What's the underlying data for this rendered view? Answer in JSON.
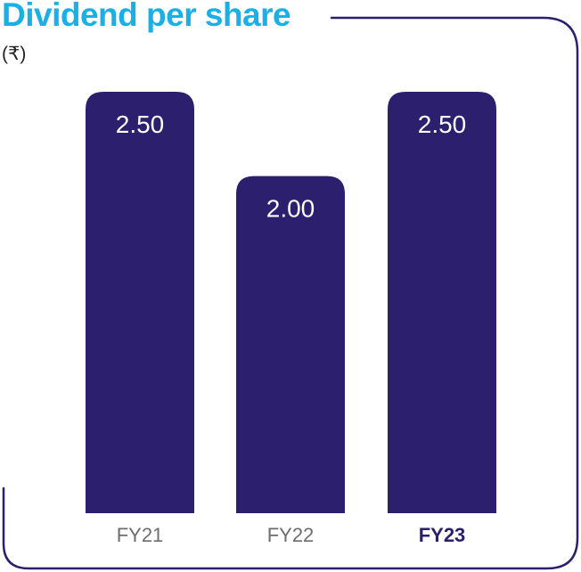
{
  "chart_data": {
    "type": "bar",
    "title": "Dividend per share",
    "unit": "(₹)",
    "categories": [
      "FY21",
      "FY22",
      "FY23"
    ],
    "values": [
      2.5,
      2.0,
      2.5
    ],
    "value_labels": [
      "2.50",
      "2.00",
      "2.50"
    ],
    "highlight_category": "FY23",
    "ylim": [
      0,
      2.6
    ],
    "grid": false,
    "legend": "none",
    "colors": {
      "bar": "#2b1f6e",
      "title": "#1ab0e6",
      "frame": "#2b1f6e",
      "label": "#6d6d6d",
      "highlight_label": "#2b1f6e"
    }
  }
}
